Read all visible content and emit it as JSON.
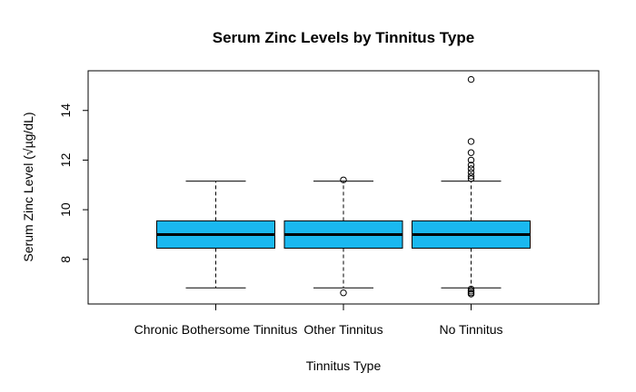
{
  "chart_data": {
    "type": "boxplot",
    "title": "Serum Zinc Levels by Tinnitus Type",
    "xlabel": "Tinnitus Type",
    "ylabel_prefix": "Serum Zinc Level (",
    "ylabel_unit": "µg",
    "ylabel_denom": "dL",
    "ylabel_suffix": ")",
    "ylim": [
      6.2,
      15.6
    ],
    "y_ticks": [
      8,
      10,
      12,
      14
    ],
    "box_color": "#1ab8f0",
    "categories": [
      "Chronic Bothersome Tinnitus",
      "Other Tinnitus",
      "No Tinnitus"
    ],
    "boxes": [
      {
        "whisker_low": 6.85,
        "q1": 8.45,
        "median": 9.0,
        "q3": 9.55,
        "whisker_high": 11.15,
        "outliers": []
      },
      {
        "whisker_low": 6.85,
        "q1": 8.45,
        "median": 9.0,
        "q3": 9.55,
        "whisker_high": 11.15,
        "outliers": [
          11.2,
          6.65
        ]
      },
      {
        "whisker_low": 6.85,
        "q1": 8.45,
        "median": 9.0,
        "q3": 9.55,
        "whisker_high": 11.15,
        "outliers": [
          15.25,
          12.75,
          12.3,
          12.0,
          11.8,
          11.65,
          11.5,
          11.35,
          11.25,
          6.8,
          6.72,
          6.65,
          6.6
        ]
      }
    ]
  }
}
